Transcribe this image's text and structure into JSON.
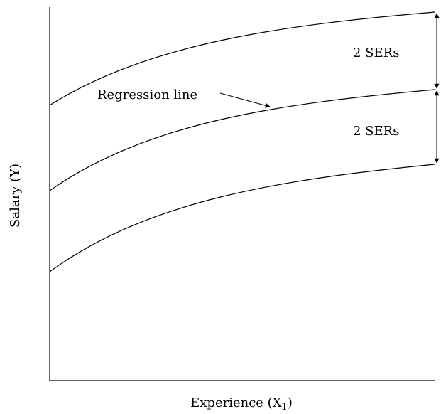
{
  "diagram": {
    "ylabel": "Salary (Y)",
    "xlabel_main": "Experience (X",
    "xlabel_sub": "1",
    "xlabel_close": ")",
    "regression_label": "Regression line",
    "band_upper_label": "2 SERs",
    "band_lower_label": "2 SERs",
    "colors": {
      "ink": "#000000",
      "background": "#ffffff"
    }
  }
}
